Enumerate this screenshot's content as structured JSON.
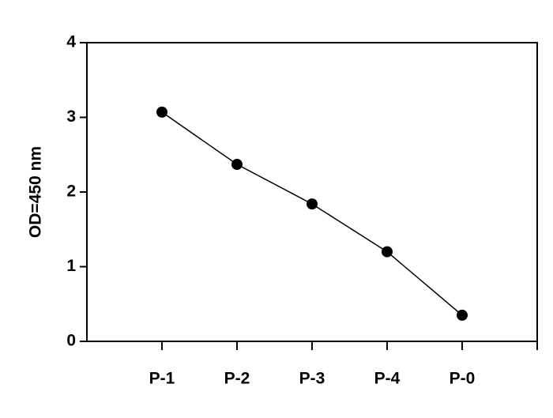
{
  "chart_data": {
    "type": "line",
    "y_label": "OD=450 nm",
    "categories": [
      "P-1",
      "P-2",
      "P-3",
      "P-4",
      "P-0"
    ],
    "values": [
      3.07,
      2.37,
      1.84,
      1.2,
      0.35
    ],
    "color": "#000000",
    "ylim": [
      0,
      4
    ],
    "yticks": [
      0,
      1,
      2,
      3,
      4
    ]
  }
}
